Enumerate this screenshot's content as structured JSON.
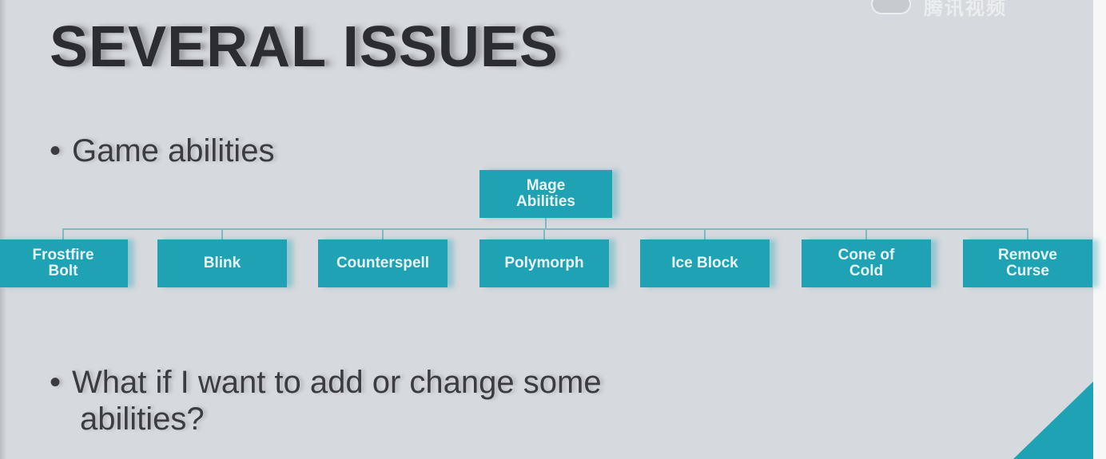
{
  "slide": {
    "title": "SEVERAL ISSUES",
    "bullet_symbol": "•",
    "bullets": [
      {
        "text": "Game abilities"
      },
      {
        "line1": "What if I want to add or change some",
        "line2": "abilities?"
      }
    ]
  },
  "watermark": {
    "text": "腾讯视频"
  },
  "diagram": {
    "root": "Mage\nAbilities",
    "children": [
      "Frostfire\nBolt",
      "Blink",
      "Counterspell",
      "Polymorph",
      "Ice Block",
      "Cone of\nCold",
      "Remove\nCurse"
    ]
  },
  "colors": {
    "background": "#d6d9dd",
    "node": "#1ea2b4",
    "node_text": "#e8f5f7",
    "connector": "#7fbac3",
    "title": "#2b2d33"
  }
}
